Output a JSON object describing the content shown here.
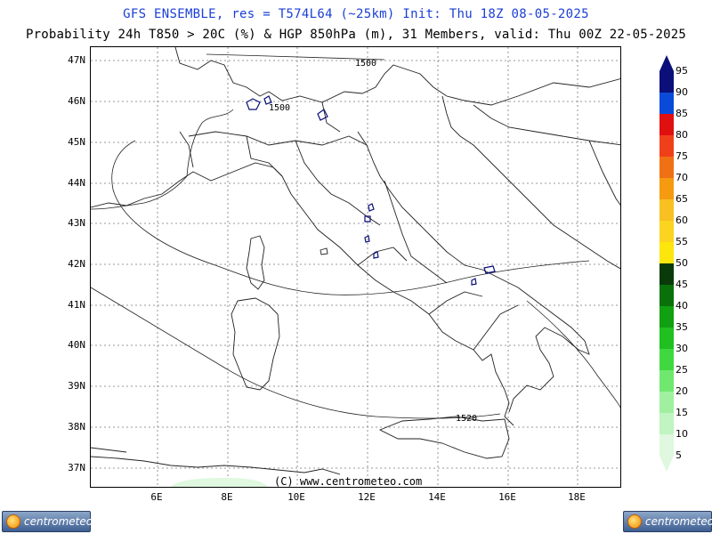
{
  "header": {
    "title": "GFS ENSEMBLE, res = T574L64 (~25km)   Init: Thu 18Z 08-05-2025",
    "subtitle": "Probability 24h T850 > 20C (%) & HGP 850hPa (m), 31 Members, valid: Thu 00Z 22-05-2025"
  },
  "map": {
    "lat_labels": [
      "47N",
      "46N",
      "45N",
      "44N",
      "43N",
      "42N",
      "41N",
      "40N",
      "39N",
      "38N",
      "37N"
    ],
    "lon_labels": [
      "6E",
      "8E",
      "10E",
      "12E",
      "14E",
      "16E",
      "18E"
    ],
    "contour_labels": [
      "1500",
      "1500",
      "1520"
    ],
    "copyright": "(C) www.centrometeo.com"
  },
  "colorbar": {
    "labels": [
      "95",
      "90",
      "85",
      "80",
      "75",
      "70",
      "65",
      "60",
      "55",
      "50",
      "45",
      "40",
      "35",
      "30",
      "25",
      "20",
      "15",
      "10",
      "5"
    ],
    "colors": [
      "#0a0f7a",
      "#0a4ad8",
      "#e01010",
      "#f0401a",
      "#f07014",
      "#f69a10",
      "#f8c020",
      "#fad420",
      "#fce60e",
      "#0a3a0a",
      "#0a700a",
      "#10a010",
      "#20c020",
      "#40d840",
      "#70e870",
      "#a0f0a0",
      "#c0f4c0",
      "#dff8df"
    ]
  },
  "logos": {
    "left_text": "centrometeo",
    "right_text": "centrometeo"
  }
}
